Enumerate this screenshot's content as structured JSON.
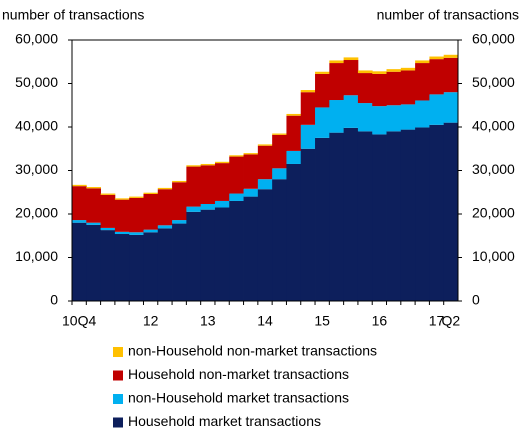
{
  "chart_data": {
    "type": "stacked_bar",
    "y_label": "number of transactions",
    "y2_label": "number of transactions",
    "categories": [
      "10Q4",
      null,
      null,
      null,
      null,
      "12",
      null,
      null,
      null,
      "13",
      null,
      null,
      null,
      "14",
      null,
      null,
      null,
      "15",
      null,
      null,
      null,
      "16",
      null,
      null,
      null,
      "17",
      "Q2"
    ],
    "series": [
      {
        "name": "Household market transactions",
        "color": "#0d1f5c",
        "values": [
          18000,
          17500,
          16300,
          15400,
          15200,
          15800,
          16700,
          17800,
          20500,
          21000,
          21500,
          23000,
          24000,
          25700,
          28000,
          31500,
          35000,
          37500,
          38700,
          39800,
          39000,
          38300,
          39000,
          39400,
          39900,
          40500,
          41000
        ]
      },
      {
        "name": "non-Household market transactions",
        "color": "#00b0f0",
        "values": [
          600,
          500,
          500,
          500,
          600,
          600,
          700,
          800,
          1200,
          1300,
          1500,
          1700,
          1800,
          2300,
          2500,
          3000,
          5500,
          7000,
          7500,
          7500,
          6500,
          6500,
          6000,
          5800,
          6200,
          7000,
          7000
        ]
      },
      {
        "name": "Household non-market transactions",
        "color": "#c00000",
        "values": [
          7800,
          7900,
          7600,
          7400,
          7900,
          8200,
          8300,
          8700,
          9200,
          8900,
          8700,
          8500,
          7900,
          7700,
          7700,
          8100,
          7500,
          7700,
          8500,
          8100,
          6900,
          7400,
          7700,
          7800,
          8600,
          8100,
          7900
        ]
      },
      {
        "name": "non-Household non-market transactions",
        "color": "#ffc000",
        "values": [
          300,
          300,
          300,
          300,
          300,
          300,
          300,
          300,
          300,
          300,
          300,
          300,
          300,
          300,
          300,
          400,
          500,
          500,
          600,
          600,
          600,
          600,
          600,
          600,
          600,
          600,
          700
        ]
      }
    ],
    "ylim": [
      0,
      60000
    ],
    "yticks": [
      0,
      {
        "value": 10000,
        "label": "10,000"
      },
      {
        "value": 20000,
        "label": "20,000"
      },
      {
        "value": 30000,
        "label": "30,000"
      },
      {
        "value": 40000,
        "label": "40,000"
      },
      {
        "value": 50000,
        "label": "50,000"
      },
      {
        "value": 60000,
        "label": "60,000"
      }
    ],
    "y2lim": [
      0,
      60000
    ],
    "y2ticks": [
      0,
      {
        "value": 10000,
        "label": "10,000"
      },
      {
        "value": 20000,
        "label": "20,000"
      },
      {
        "value": 30000,
        "label": "30,000"
      },
      {
        "value": 40000,
        "label": "40,000"
      },
      {
        "value": 50000,
        "label": "50,000"
      },
      {
        "value": 60000,
        "label": "60,000"
      }
    ]
  }
}
